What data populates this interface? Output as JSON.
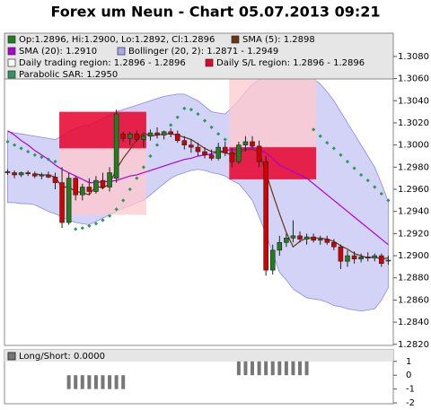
{
  "chart_data": [
    {
      "type": "candlestick",
      "title": "Forex um Neun - Chart 05.07.2013 09:21",
      "ylim": [
        1.2819,
        1.3101
      ],
      "yticks": [
        {
          "value": 1.282,
          "label": "1.2820"
        },
        {
          "value": 1.284,
          "label": "1.2840"
        },
        {
          "value": 1.286,
          "label": "1.2860"
        },
        {
          "value": 1.288,
          "label": "1.2880"
        },
        {
          "value": 1.29,
          "label": "1.2900"
        },
        {
          "value": 1.292,
          "label": "1.2920"
        },
        {
          "value": 1.294,
          "label": "1.2940"
        },
        {
          "value": 1.296,
          "label": "1.2960"
        },
        {
          "value": 1.298,
          "label": "1.2980"
        },
        {
          "value": 1.3,
          "label": "1.3000"
        },
        {
          "value": 1.302,
          "label": "1.3020"
        },
        {
          "value": 1.304,
          "label": "1.3040"
        },
        {
          "value": 1.306,
          "label": "1.3060"
        },
        {
          "value": 1.308,
          "label": "1.3080"
        }
      ],
      "candles": {
        "label": "Op:1.2896, Hi:1.2900, Lo:1.2892, Cl:1.2896",
        "up_color": "#1f7f1f",
        "down_color": "#d40000",
        "open": [
          1.2976,
          1.2975,
          1.2973,
          1.2975,
          1.2974,
          1.2972,
          1.2973,
          1.2971,
          1.2966,
          1.293,
          1.297,
          1.2955,
          1.2962,
          1.2958,
          1.2968,
          1.2962,
          1.297,
          1.301,
          1.3006,
          1.301,
          1.3005,
          1.3008,
          1.3011,
          1.3009,
          1.3012,
          1.301,
          1.3004,
          1.3,
          1.2998,
          1.2994,
          1.2991,
          1.2988,
          1.2998,
          1.2993,
          1.2985,
          1.3,
          1.3003,
          1.2999,
          1.2985,
          1.2887,
          1.2905,
          1.2912,
          1.2916,
          1.2918,
          1.2915,
          1.2917,
          1.2914,
          1.2915,
          1.2912,
          1.2908,
          1.2895,
          1.29,
          1.2897,
          1.2899,
          1.2898,
          1.29,
          1.2896
        ],
        "high": [
          1.2978,
          1.2977,
          1.2976,
          1.2977,
          1.2976,
          1.2975,
          1.2976,
          1.2975,
          1.298,
          1.2975,
          1.2972,
          1.2965,
          1.297,
          1.2972,
          1.2975,
          1.298,
          1.3032,
          1.3012,
          1.3012,
          1.3013,
          1.301,
          1.3014,
          1.3016,
          1.3013,
          1.3015,
          1.3013,
          1.3008,
          1.3005,
          1.3002,
          1.2998,
          1.2996,
          1.3002,
          1.3003,
          1.2997,
          1.3003,
          1.3008,
          1.3008,
          1.3004,
          1.299,
          1.291,
          1.2918,
          1.292,
          1.2932,
          1.2922,
          1.292,
          1.292,
          1.2918,
          1.2918,
          1.2915,
          1.291,
          1.2905,
          1.2904,
          1.2902,
          1.2903,
          1.2902,
          1.2902,
          1.29
        ],
        "low": [
          1.2973,
          1.297,
          1.2971,
          1.2972,
          1.297,
          1.2969,
          1.297,
          1.296,
          1.2925,
          1.2928,
          1.295,
          1.295,
          1.2955,
          1.2956,
          1.296,
          1.2958,
          1.2966,
          1.3003,
          1.3,
          1.3003,
          1.2998,
          1.3004,
          1.3006,
          1.3005,
          1.3007,
          1.3002,
          1.2996,
          1.2993,
          1.299,
          1.2988,
          1.2986,
          1.2986,
          1.299,
          1.298,
          1.2983,
          1.2994,
          1.2997,
          1.298,
          1.2882,
          1.2883,
          1.29,
          1.2908,
          1.2912,
          1.2912,
          1.291,
          1.2912,
          1.291,
          1.291,
          1.2905,
          1.2888,
          1.289,
          1.2893,
          1.2894,
          1.2895,
          1.2895,
          1.289,
          1.2892
        ],
        "close": [
          1.2975,
          1.2973,
          1.2975,
          1.2974,
          1.2972,
          1.2973,
          1.2971,
          1.2966,
          1.293,
          1.297,
          1.2955,
          1.2962,
          1.2958,
          1.2968,
          1.2962,
          1.2975,
          1.3028,
          1.3006,
          1.301,
          1.3005,
          1.3008,
          1.3011,
          1.3009,
          1.3012,
          1.301,
          1.3004,
          1.3,
          1.2998,
          1.2994,
          1.2991,
          1.2988,
          1.2998,
          1.2993,
          1.2985,
          1.3,
          1.3003,
          1.2999,
          1.2985,
          1.2887,
          1.2905,
          1.2912,
          1.2916,
          1.2918,
          1.2915,
          1.2917,
          1.2914,
          1.2915,
          1.2912,
          1.2908,
          1.2895,
          1.29,
          1.2897,
          1.2899,
          1.2898,
          1.29,
          1.2893,
          1.2896
        ]
      },
      "sma5": {
        "label": "SMA (5): 1.2898",
        "color": "#6b3413",
        "values": [
          null,
          null,
          null,
          null,
          1.2974,
          1.2973,
          1.2973,
          1.2971,
          1.2962,
          1.2962,
          1.2958,
          1.2957,
          1.2955,
          1.2963,
          1.2961,
          1.2965,
          1.2978,
          1.2988,
          1.2996,
          1.3005,
          1.3011,
          1.3008,
          1.3009,
          1.301,
          1.301,
          1.3009,
          1.3007,
          1.3005,
          1.3001,
          1.2997,
          1.2994,
          1.2994,
          1.2993,
          1.2991,
          1.2993,
          1.2996,
          1.2996,
          1.2994,
          1.2975,
          1.2956,
          1.2938,
          1.2921,
          1.2908,
          1.2913,
          1.2916,
          1.2916,
          1.2916,
          1.2915,
          1.2913,
          1.2909,
          1.2906,
          1.2902,
          1.29,
          1.2898,
          1.2899,
          1.2897,
          1.2898
        ]
      },
      "sma20": {
        "label": "SMA (20): 1.2910",
        "color": "#b000d8",
        "values": [
          1.3013,
          1.3009,
          1.3004,
          1.3,
          1.2995,
          1.2991,
          1.2987,
          1.2982,
          1.2978,
          1.2975,
          1.2972,
          1.2969,
          1.2966,
          1.2966,
          1.2967,
          1.2967,
          1.2968,
          1.297,
          1.2972,
          1.2973,
          1.2975,
          1.2977,
          1.2979,
          1.2981,
          1.2983,
          1.2985,
          1.2987,
          1.2988,
          1.299,
          1.2991,
          1.2992,
          1.2994,
          1.2995,
          1.2996,
          1.2996,
          1.2997,
          1.2998,
          1.2996,
          1.2993,
          1.2988,
          1.2982,
          1.2979,
          1.2976,
          1.2973,
          1.297,
          1.2965,
          1.296,
          1.2955,
          1.295,
          1.2945,
          1.294,
          1.2935,
          1.293,
          1.2925,
          1.292,
          1.2915,
          1.291
        ]
      },
      "bollinger": {
        "label": "Bollinger (20, 2): 1.2871 - 1.2949",
        "color": "#a8a8f0",
        "upper": [
          1.3012,
          1.3011,
          1.301,
          1.3009,
          1.3008,
          1.3007,
          1.3006,
          1.3005,
          1.3008,
          1.3012,
          1.3015,
          1.3017,
          1.3018,
          1.3021,
          1.3024,
          1.3027,
          1.303,
          1.3032,
          1.3034,
          1.3036,
          1.3038,
          1.304,
          1.3042,
          1.3044,
          1.3045,
          1.3046,
          1.3046,
          1.3043,
          1.304,
          1.3035,
          1.303,
          1.3029,
          1.3028,
          1.3034,
          1.304,
          1.3048,
          1.3055,
          1.3059,
          1.3062,
          1.3065,
          1.3068,
          1.3067,
          1.3066,
          1.3065,
          1.3064,
          1.306,
          1.3055,
          1.3048,
          1.304,
          1.303,
          1.302,
          1.301,
          1.3,
          1.299,
          1.298,
          1.2965,
          1.2949
        ],
        "lower": [
          1.2948,
          1.2948,
          1.2947,
          1.2947,
          1.2946,
          1.2943,
          1.294,
          1.2938,
          1.2935,
          1.2932,
          1.293,
          1.2929,
          1.2928,
          1.2931,
          1.2934,
          1.2937,
          1.294,
          1.2943,
          1.2945,
          1.2948,
          1.295,
          1.2955,
          1.296,
          1.2965,
          1.297,
          1.2973,
          1.2975,
          1.2977,
          1.2978,
          1.2977,
          1.2975,
          1.2974,
          1.2972,
          1.2968,
          1.2965,
          1.2958,
          1.295,
          1.2935,
          1.292,
          1.2902,
          1.2885,
          1.2878,
          1.287,
          1.2866,
          1.2862,
          1.2861,
          1.286,
          1.2858,
          1.2855,
          1.2854,
          1.2852,
          1.2851,
          1.285,
          1.2851,
          1.2852,
          1.286,
          1.2871
        ]
      },
      "trading_region": {
        "label": "Daily trading region: 1.2896 - 1.2896",
        "color": "#ffc8cc",
        "regions": [
          {
            "start": 8,
            "end": 20,
            "low": 1.2937,
            "high": 1.2997
          },
          {
            "start": 33,
            "end": 45,
            "low": 1.2997,
            "high": 1.306
          }
        ]
      },
      "sl_region": {
        "label": "Daily S/L region: 1.2896 - 1.2896",
        "color": "#e8002a",
        "regions": [
          {
            "start": 8,
            "end": 20,
            "low": 1.2997,
            "high": 1.303
          },
          {
            "start": 33,
            "end": 45,
            "low": 1.2969,
            "high": 1.2998
          }
        ]
      },
      "sar": {
        "label": "Parabolic SAR: 1.2950",
        "color": "#2a9a5a",
        "values": [
          1.3003,
          1.3,
          1.2997,
          1.2994,
          1.2991,
          1.2989,
          1.2987,
          1.2985,
          null,
          null,
          1.2924,
          1.2925,
          1.2927,
          1.2929,
          1.2932,
          1.2936,
          1.2942,
          1.295,
          1.296,
          1.297,
          1.298,
          1.299,
          1.3,
          1.301,
          1.3018,
          1.3025,
          1.3033,
          1.3032,
          1.3028,
          1.3022,
          1.3016,
          1.301,
          1.3005,
          null,
          null,
          null,
          null,
          null,
          null,
          null,
          null,
          null,
          null,
          null,
          null,
          1.3014,
          1.3008,
          1.3002,
          1.2997,
          1.2991,
          1.2985,
          1.2979,
          1.2973,
          1.2968,
          1.2962,
          1.2956,
          1.295
        ]
      }
    },
    {
      "type": "bar",
      "label": "Long/Short: 0.0000",
      "color": "#777777",
      "ylim": [
        -2.06,
        1.7
      ],
      "yticks": [
        1,
        0,
        -1,
        -2
      ],
      "values": [
        0,
        0,
        0,
        0,
        0,
        0,
        0,
        0,
        0,
        -1,
        -1,
        -1,
        -1,
        -1,
        -1,
        -1,
        -1,
        -1,
        0,
        0,
        0,
        0,
        0,
        0,
        0,
        0,
        0,
        0,
        0,
        0,
        0,
        0,
        0,
        0,
        1,
        1,
        1,
        1,
        1,
        1,
        1,
        1,
        1,
        1,
        1,
        0,
        0,
        0,
        0,
        0,
        0,
        0,
        0,
        0,
        0,
        0,
        0
      ]
    }
  ]
}
